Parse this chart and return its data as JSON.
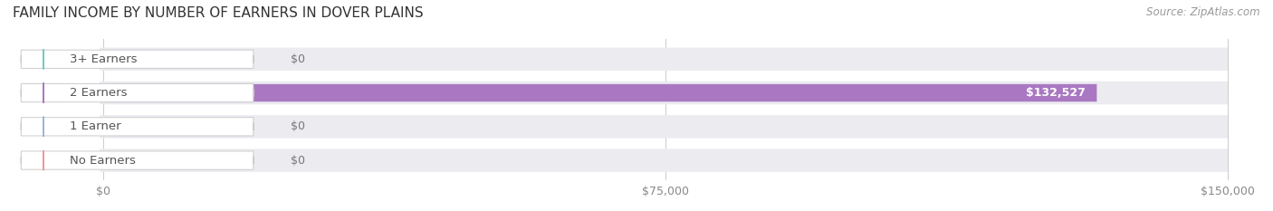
{
  "title": "FAMILY INCOME BY NUMBER OF EARNERS IN DOVER PLAINS",
  "source": "Source: ZipAtlas.com",
  "categories": [
    "No Earners",
    "1 Earner",
    "2 Earners",
    "3+ Earners"
  ],
  "values": [
    0,
    0,
    132527,
    0
  ],
  "bar_colors": [
    "#f09898",
    "#9ab4e0",
    "#aa78c2",
    "#72cac0"
  ],
  "bar_bg_color": "#ebebf0",
  "value_labels": [
    "$0",
    "$0",
    "$132,527",
    "$0"
  ],
  "xlim_max": 150000,
  "xticks": [
    0,
    75000,
    150000
  ],
  "xticklabels": [
    "$0",
    "$75,000",
    "$150,000"
  ],
  "title_fontsize": 11,
  "source_fontsize": 8.5,
  "bar_label_fontsize": 9.5,
  "value_label_fontsize": 9,
  "background_color": "#ffffff",
  "pill_label_color": "#555555",
  "value_label_dark": "#777777",
  "value_label_light": "#ffffff"
}
